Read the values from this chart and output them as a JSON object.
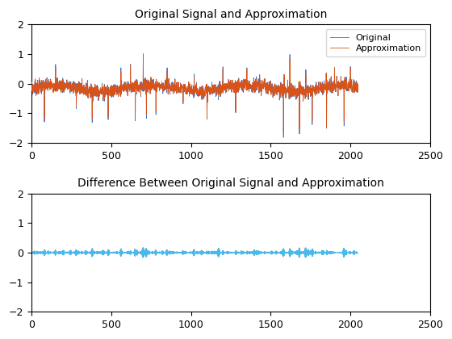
{
  "title1": "Original Signal and Approximation",
  "title2": "Difference Between Original Signal and Approximation",
  "legend_labels": [
    "Original",
    "Approximation"
  ],
  "original_color": "#4472c4",
  "approx_color": "#d95319",
  "diff_color": "#4db8e8",
  "xlim": [
    0,
    2500
  ],
  "ylim": [
    -2,
    2
  ],
  "xticks": [
    0,
    500,
    1000,
    1500,
    2000,
    2500
  ],
  "yticks": [
    -2,
    -1,
    0,
    1,
    2
  ],
  "n_samples": 2048,
  "linewidth": 0.6,
  "background_color": "#ffffff",
  "legend_loc": "upper right"
}
